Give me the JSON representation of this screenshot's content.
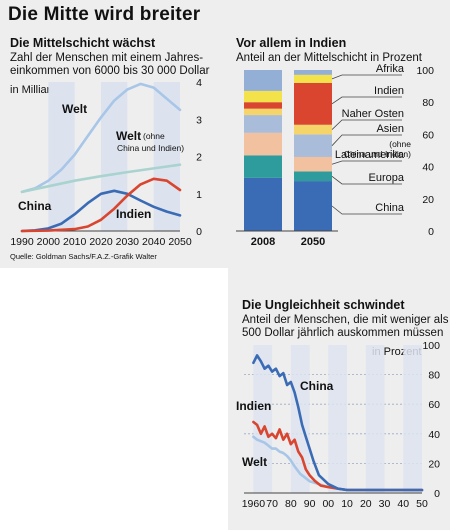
{
  "header": {
    "title": "Die Mitte wird breiter"
  },
  "colors": {
    "welt": "#a8c6e8",
    "welt_ohne": "#a9d3cf",
    "china": "#3a6bb5",
    "indien": "#d9452e",
    "band": "#dde3ee"
  },
  "chart_data": [
    {
      "type": "line",
      "title": "Die Mittelschicht wächst",
      "subtitle_line1": "Zahl der Menschen mit einem Jahres-",
      "subtitle_line2": "einkommen von 6000 bis 30 000 Dollar",
      "ylabel": "in Milliarden",
      "source": "Quelle: Goldman Sachs/F.A.Z.-Grafik Walter",
      "x_ticks": [
        "1990",
        "2000",
        "2010",
        "2020",
        "2030",
        "2040",
        "2050"
      ],
      "y_ticks": [
        "0",
        "1",
        "2",
        "3",
        "4"
      ],
      "xlim": [
        1990,
        2050
      ],
      "ylim": [
        0,
        4
      ],
      "series": [
        {
          "name": "Welt",
          "color": "#a8c6e8",
          "x": [
            1990,
            1995,
            2000,
            2005,
            2010,
            2015,
            2020,
            2025,
            2030,
            2035,
            2040,
            2045,
            2050
          ],
          "y": [
            1.05,
            1.15,
            1.35,
            1.65,
            2.05,
            2.55,
            3.05,
            3.5,
            3.8,
            3.95,
            3.85,
            3.55,
            3.25
          ]
        },
        {
          "name": "Welt",
          "name_note": "(ohne China und Indien)",
          "color": "#a9d3cf",
          "x": [
            1990,
            2000,
            2010,
            2020,
            2030,
            2040,
            2050
          ],
          "y": [
            1.05,
            1.2,
            1.35,
            1.47,
            1.58,
            1.68,
            1.78
          ]
        },
        {
          "name": "China",
          "color": "#3a6bb5",
          "x": [
            1990,
            1995,
            2000,
            2005,
            2010,
            2015,
            2020,
            2025,
            2030,
            2035,
            2040,
            2045,
            2050
          ],
          "y": [
            0.0,
            0.02,
            0.07,
            0.2,
            0.45,
            0.75,
            1.0,
            1.08,
            1.0,
            0.82,
            0.65,
            0.52,
            0.42
          ]
        },
        {
          "name": "Indien",
          "color": "#d9452e",
          "x": [
            1990,
            2000,
            2010,
            2015,
            2020,
            2025,
            2030,
            2035,
            2040,
            2045,
            2050
          ],
          "y": [
            0.0,
            0.01,
            0.05,
            0.12,
            0.3,
            0.6,
            0.95,
            1.25,
            1.4,
            1.35,
            1.1
          ]
        }
      ]
    },
    {
      "type": "bar",
      "stacked": true,
      "title": "Vor allem in Indien",
      "subtitle": "Anteil an der Mittelschicht in Prozent",
      "categories": [
        "2008",
        "2050"
      ],
      "y_ticks": [
        "0",
        "20",
        "40",
        "60",
        "80",
        "100"
      ],
      "ylim": [
        0,
        100
      ],
      "series": [
        {
          "name": "China",
          "color": "#3a6bb5",
          "values": [
            33,
            31
          ]
        },
        {
          "name": "Europa",
          "color": "#2e9c9c",
          "values": [
            14,
            6
          ]
        },
        {
          "name": "Lateinamerika",
          "color": "#f2c2a0",
          "values": [
            14,
            9
          ]
        },
        {
          "name": "Asien",
          "name_note": "(ohne China und Indien)",
          "color": "#a9bcd9",
          "values": [
            11,
            14
          ]
        },
        {
          "name": "Naher Osten",
          "color": "#f5d56a",
          "values": [
            4,
            6
          ]
        },
        {
          "name": "Indien",
          "color": "#d9452e",
          "values": [
            4,
            26
          ]
        },
        {
          "name": "Afrika",
          "color": "#f4e24a",
          "values": [
            7,
            5
          ]
        },
        {
          "name": "",
          "color": "#93afd6",
          "values": [
            13,
            3
          ]
        }
      ]
    },
    {
      "type": "line",
      "title": "Die Ungleichheit schwindet",
      "subtitle_line1": "Anteil der Menschen, die mit weniger als",
      "subtitle_line2": "500 Dollar jährlich auskommen müssen",
      "ylabel": "in Prozent",
      "x_ticks": [
        "1960",
        "70",
        "80",
        "90",
        "00",
        "10",
        "20",
        "30",
        "40",
        "50"
      ],
      "y_ticks": [
        "0",
        "20",
        "40",
        "60",
        "80",
        "100"
      ],
      "xlim": [
        1955,
        2050
      ],
      "ylim": [
        0,
        100
      ],
      "series": [
        {
          "name": "China",
          "color": "#3a6bb5",
          "x": [
            1960,
            1962,
            1964,
            1966,
            1968,
            1970,
            1972,
            1974,
            1976,
            1978,
            1980,
            1982,
            1984,
            1986,
            1988,
            1990,
            1992,
            1995,
            2000,
            2005,
            2010,
            2030,
            2050
          ],
          "y": [
            88,
            93,
            89,
            84,
            86,
            82,
            84,
            79,
            81,
            73,
            75,
            68,
            58,
            46,
            38,
            30,
            22,
            12,
            6,
            3,
            2,
            2,
            2
          ]
        },
        {
          "name": "Indien",
          "color": "#d9452e",
          "x": [
            1960,
            1962,
            1964,
            1966,
            1968,
            1970,
            1972,
            1974,
            1976,
            1978,
            1980,
            1982,
            1984,
            1986,
            1988,
            1990,
            1993,
            1996,
            2000,
            2005,
            2010,
            2030,
            2050
          ],
          "y": [
            48,
            46,
            40,
            45,
            38,
            40,
            37,
            43,
            36,
            40,
            33,
            36,
            28,
            24,
            16,
            12,
            8,
            5,
            4,
            3,
            2,
            2,
            2
          ]
        },
        {
          "name": "Welt",
          "color": "#a8c6e8",
          "x": [
            1960,
            1962,
            1964,
            1966,
            1968,
            1970,
            1972,
            1974,
            1976,
            1978,
            1980,
            1982,
            1985,
            1988,
            1990,
            1995,
            2000,
            2005,
            2010,
            2030,
            2050
          ],
          "y": [
            38,
            36,
            35,
            34,
            32,
            30,
            30,
            28,
            27,
            25,
            22,
            18,
            13,
            10,
            8,
            6,
            4,
            3,
            2,
            2,
            2
          ]
        }
      ]
    }
  ]
}
